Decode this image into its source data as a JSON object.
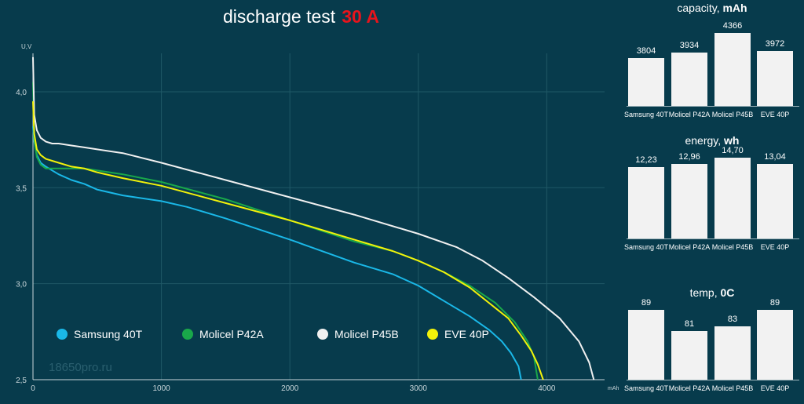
{
  "title": {
    "text": "discharge test",
    "current": "30 A"
  },
  "watermark": "18650pro.ru",
  "colors": {
    "background": "#073b4c",
    "grid": "#1f5866",
    "title_accent": "#e8141c",
    "samsung_40t": "#1ab8e8",
    "molicel_p42a": "#19a84a",
    "molicel_p45b": "#f0f0f0",
    "eve_40p": "#f2f20a",
    "bar": "#f2f2f2"
  },
  "legend": [
    {
      "label": "Samsung 40T",
      "color": "#1ab8e8"
    },
    {
      "label": "Molicel P42A",
      "color": "#19a84a"
    },
    {
      "label": "Molicel P45B",
      "color": "#f0f0f0"
    },
    {
      "label": "EVE 40P",
      "color": "#f2f20a"
    }
  ],
  "chart_data": [
    {
      "type": "line",
      "title": "discharge test 30 A",
      "xlabel": "mAh",
      "ylabel": "U,V",
      "xlim": [
        0,
        4450
      ],
      "ylim": [
        2.5,
        4.2
      ],
      "xticks": [
        0,
        1000,
        2000,
        3000,
        4000
      ],
      "xtick_labels": [
        "0",
        "1000",
        "2000",
        "3000",
        "4000"
      ],
      "yticks": [
        2.5,
        3.0,
        3.5,
        4.0
      ],
      "ytick_labels": [
        "2,5",
        "3,0",
        "3,5",
        "4,0"
      ],
      "grid": true,
      "series": [
        {
          "name": "Samsung 40T",
          "color": "#1ab8e8",
          "x": [
            0,
            10,
            30,
            60,
            100,
            150,
            200,
            300,
            400,
            500,
            700,
            1000,
            1200,
            1500,
            2000,
            2500,
            2800,
            3000,
            3200,
            3400,
            3550,
            3650,
            3720,
            3780,
            3800
          ],
          "y": [
            3.82,
            3.74,
            3.67,
            3.63,
            3.61,
            3.59,
            3.57,
            3.54,
            3.52,
            3.49,
            3.46,
            3.43,
            3.4,
            3.34,
            3.23,
            3.11,
            3.05,
            2.99,
            2.91,
            2.83,
            2.76,
            2.7,
            2.64,
            2.57,
            2.5
          ]
        },
        {
          "name": "Molicel P42A",
          "color": "#19a84a",
          "x": [
            0,
            10,
            30,
            60,
            100,
            150,
            200,
            300,
            400,
            500,
            700,
            1000,
            1500,
            2000,
            2500,
            2800,
            3000,
            3200,
            3400,
            3600,
            3750,
            3850,
            3900,
            3930
          ],
          "y": [
            4.05,
            3.75,
            3.66,
            3.62,
            3.6,
            3.6,
            3.6,
            3.6,
            3.6,
            3.59,
            3.57,
            3.53,
            3.44,
            3.33,
            3.22,
            3.17,
            3.12,
            3.06,
            2.99,
            2.9,
            2.8,
            2.7,
            2.62,
            2.5
          ]
        },
        {
          "name": "Molicel P45B",
          "color": "#f0f0f0",
          "x": [
            0,
            10,
            30,
            60,
            100,
            150,
            200,
            300,
            400,
            500,
            700,
            1000,
            1500,
            2000,
            2500,
            3000,
            3300,
            3500,
            3700,
            3900,
            4100,
            4250,
            4330,
            4366
          ],
          "y": [
            4.18,
            3.88,
            3.8,
            3.76,
            3.74,
            3.73,
            3.73,
            3.72,
            3.71,
            3.7,
            3.68,
            3.63,
            3.54,
            3.45,
            3.36,
            3.26,
            3.19,
            3.12,
            3.03,
            2.93,
            2.82,
            2.7,
            2.59,
            2.5
          ]
        },
        {
          "name": "EVE 40P",
          "color": "#f2f20a",
          "x": [
            0,
            10,
            30,
            60,
            100,
            150,
            200,
            300,
            400,
            500,
            700,
            1000,
            1500,
            2000,
            2500,
            2800,
            3000,
            3200,
            3400,
            3550,
            3700,
            3800,
            3880,
            3930,
            3972
          ],
          "y": [
            3.95,
            3.78,
            3.7,
            3.67,
            3.65,
            3.64,
            3.63,
            3.61,
            3.6,
            3.58,
            3.55,
            3.51,
            3.42,
            3.33,
            3.23,
            3.17,
            3.12,
            3.06,
            2.98,
            2.9,
            2.82,
            2.73,
            2.65,
            2.58,
            2.5
          ]
        }
      ]
    },
    {
      "type": "bar",
      "title": "capacity, mAh",
      "title_main": "capacity,",
      "title_unit": "mAh",
      "categories": [
        "Samsung 40T",
        "Molicel P42A",
        "Molicel P45B",
        "EVE 40P"
      ],
      "values": [
        3804,
        3934,
        4366,
        3972
      ],
      "value_labels": [
        "3804",
        "3934",
        "4366",
        "3972"
      ],
      "ylim": [
        3300,
        4366
      ]
    },
    {
      "type": "bar",
      "title": "energy, wh",
      "title_main": "energy,",
      "title_unit": "wh",
      "categories": [
        "Samsung 40T",
        "Molicel P42A",
        "Molicel P45B",
        "EVE 40P"
      ],
      "values": [
        12.23,
        12.96,
        14.7,
        13.04
      ],
      "value_labels": [
        "12,23",
        "12,96",
        "14,70",
        "13,04"
      ],
      "ylim": [
        0,
        14.7
      ]
    },
    {
      "type": "bar",
      "title": "temp, 0C",
      "title_main": "temp,",
      "title_unit": "0C",
      "categories": [
        "Samsung 40T",
        "Molicel P42A",
        "Molicel P45B",
        "EVE 40P"
      ],
      "values": [
        89,
        81,
        83,
        89
      ],
      "value_labels": [
        "89",
        "81",
        "83",
        "89"
      ],
      "ylim": [
        73,
        89
      ]
    }
  ]
}
